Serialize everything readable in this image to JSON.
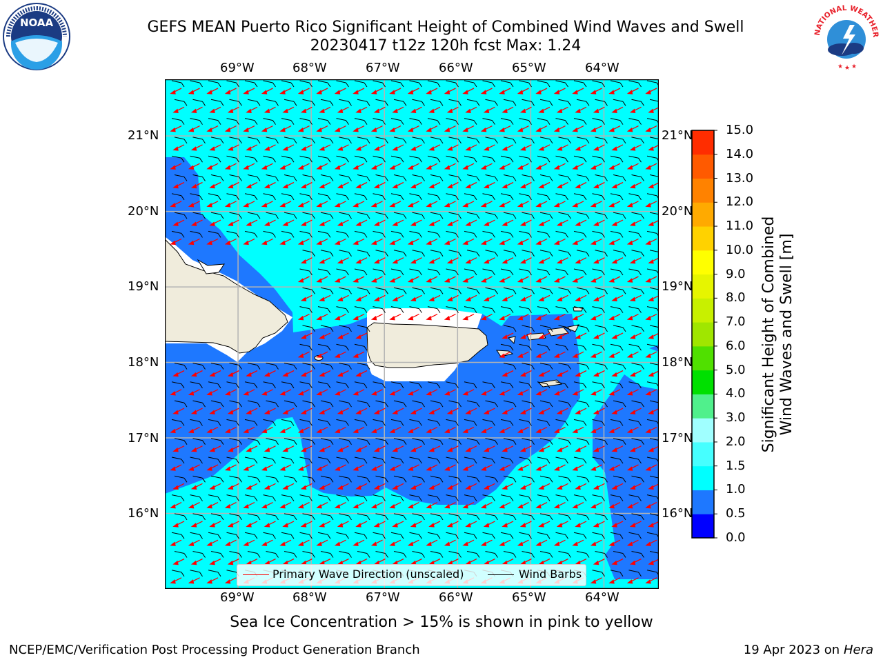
{
  "header": {
    "title_line1": "GEFS MEAN Puerto Rico Significant Height of Combined Wind Waves and Swell",
    "title_line2": "20230417 t12z 120h fcst   Max: 1.24"
  },
  "logos": {
    "left": {
      "name": "noaa-logo",
      "text": "NOAA"
    },
    "right": {
      "name": "nws-logo",
      "text": "NATIONAL WEATHER SERVICE"
    }
  },
  "map": {
    "lon_labels": [
      "69°W",
      "68°W",
      "67°W",
      "66°W",
      "65°W",
      "64°W"
    ],
    "lat_labels": [
      "21°N",
      "20°N",
      "19°N",
      "18°N",
      "17°N",
      "16°N"
    ],
    "lon_range": [
      -70,
      -63.25
    ],
    "lat_range": [
      15.0,
      21.75
    ],
    "grid": true,
    "colors": {
      "ocean_1_to_1_5": "#00ffff",
      "ocean_0_5_to_1": "#1e78ff",
      "land": "#f0ecdc",
      "arrow": "#ff0000",
      "barb": "#000000"
    }
  },
  "colorbar": {
    "label_line1": "Significant Height of Combined",
    "label_line2": "Wind Waves and Swell [m]",
    "levels": [
      "0.0",
      "0.5",
      "1.0",
      "1.5",
      "2.0",
      "3.0",
      "4.0",
      "5.0",
      "6.0",
      "7.0",
      "8.0",
      "9.0",
      "10.0",
      "11.0",
      "12.0",
      "13.0",
      "14.0",
      "15.0"
    ],
    "colors": [
      "#0000ff",
      "#1e78ff",
      "#00ffff",
      "#46ffff",
      "#a0ffff",
      "#50f08c",
      "#00e000",
      "#50e000",
      "#a0e600",
      "#c8f000",
      "#e6f500",
      "#ffff00",
      "#ffd200",
      "#ffaa00",
      "#ff8200",
      "#ff5a00",
      "#ff2d00"
    ]
  },
  "legend": {
    "wave_label": "Primary Wave Direction (unscaled)",
    "barb_label": "Wind Barbs"
  },
  "footer": {
    "note": "Sea Ice Concentration > 15% is shown in pink to yellow",
    "left": "NCEP/EMC/Verification Post Processing Product Generation Branch",
    "right_date": "19 Apr 2023 on ",
    "right_machine": "Hera"
  }
}
